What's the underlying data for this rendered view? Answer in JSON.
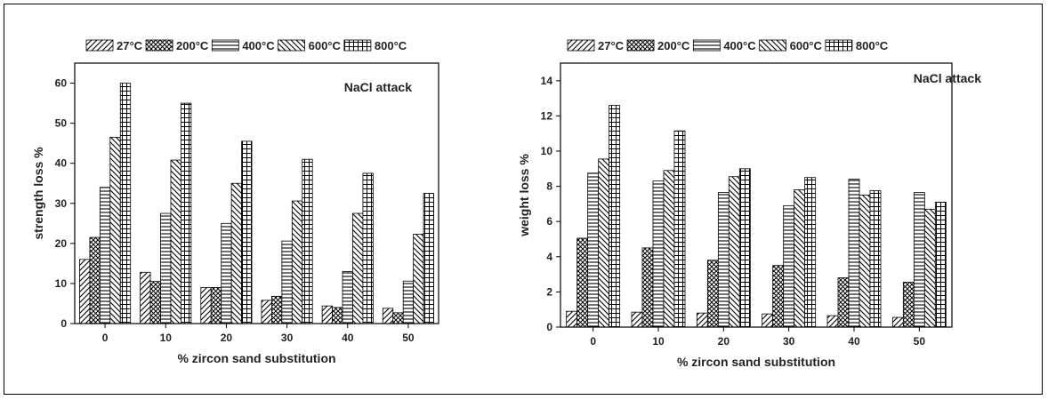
{
  "figure": {
    "legend": [
      "27°C",
      "200°C",
      "400°C",
      "600°C",
      "800°C"
    ]
  },
  "chart_data": [
    {
      "type": "bar",
      "annotation": "NaCl attack",
      "xlabel": "% zircon sand substitution",
      "ylabel": "strength loss %",
      "categories": [
        "0",
        "10",
        "20",
        "30",
        "40",
        "50"
      ],
      "ylim": [
        0,
        65
      ],
      "yticks": [
        0,
        10,
        20,
        30,
        40,
        50,
        60
      ],
      "series": [
        {
          "name": "27°C",
          "pattern": "diag-right",
          "values": [
            16,
            12.8,
            9,
            5.8,
            4.4,
            3.8
          ]
        },
        {
          "name": "200°C",
          "pattern": "cross",
          "values": [
            21.5,
            10.5,
            9,
            6.8,
            4,
            2.7
          ]
        },
        {
          "name": "400°C",
          "pattern": "horizontal",
          "values": [
            34,
            27.5,
            25,
            20.6,
            13,
            10.6
          ]
        },
        {
          "name": "600°C",
          "pattern": "diag-left",
          "values": [
            46.5,
            40.8,
            35,
            30.6,
            27.5,
            22.3
          ]
        },
        {
          "name": "800°C",
          "pattern": "grid",
          "values": [
            60,
            55,
            45.5,
            41,
            37.5,
            32.5
          ]
        }
      ],
      "grid": false,
      "legend_position": "top"
    },
    {
      "type": "bar",
      "annotation": "NaCl attack",
      "xlabel": "% zircon sand substitution",
      "ylabel": "weight loss %",
      "categories": [
        "0",
        "10",
        "20",
        "30",
        "40",
        "50"
      ],
      "ylim": [
        0,
        15
      ],
      "yticks": [
        0,
        2,
        4,
        6,
        8,
        10,
        12,
        14
      ],
      "series": [
        {
          "name": "27°C",
          "pattern": "diag-right",
          "values": [
            0.9,
            0.85,
            0.8,
            0.75,
            0.65,
            0.55
          ]
        },
        {
          "name": "200°C",
          "pattern": "cross",
          "values": [
            5.05,
            4.5,
            3.8,
            3.5,
            2.8,
            2.55
          ]
        },
        {
          "name": "400°C",
          "pattern": "horizontal",
          "values": [
            8.75,
            8.3,
            7.65,
            6.9,
            8.4,
            7.65
          ]
        },
        {
          "name": "600°C",
          "pattern": "diag-left",
          "values": [
            9.55,
            8.9,
            8.55,
            7.8,
            7.5,
            6.7
          ]
        },
        {
          "name": "800°C",
          "pattern": "grid",
          "values": [
            12.6,
            11.15,
            9,
            8.5,
            7.75,
            7.1
          ]
        }
      ],
      "grid": false,
      "legend_position": "top"
    }
  ]
}
